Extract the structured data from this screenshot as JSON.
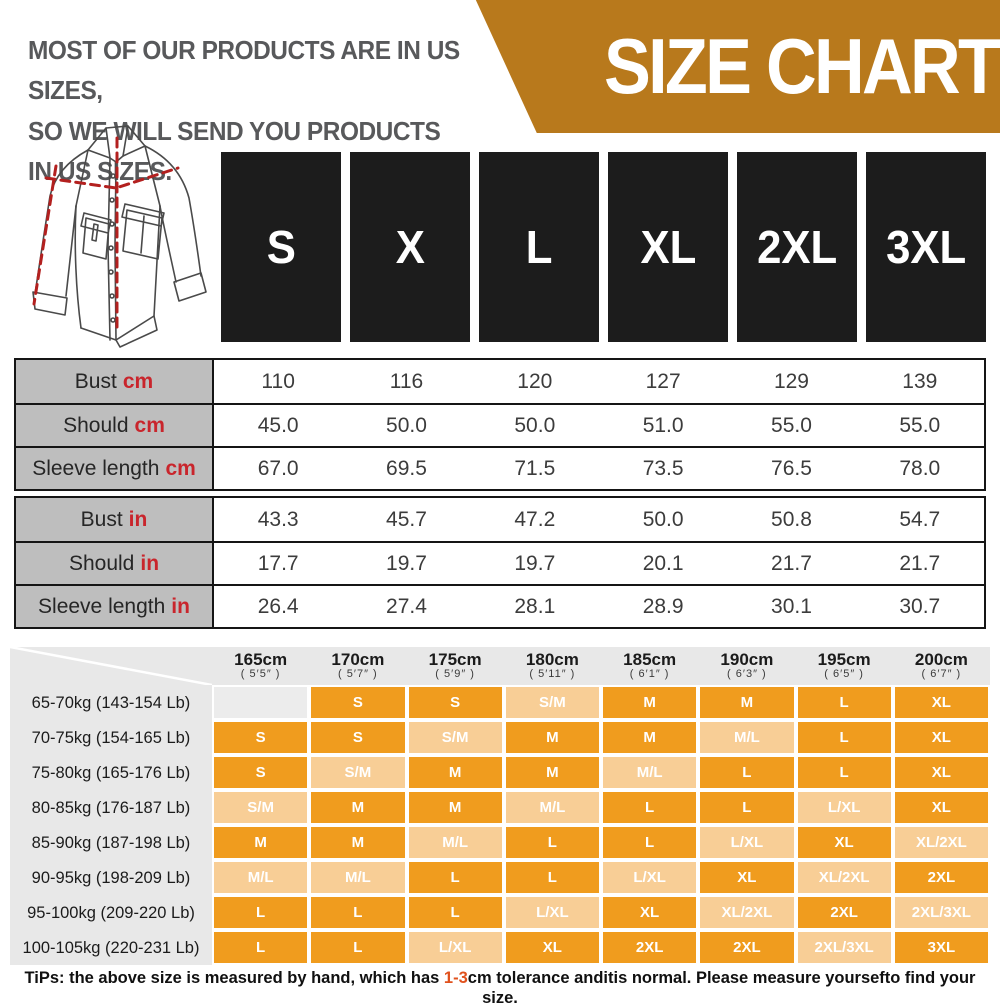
{
  "header": {
    "note_line1": "MOST OF OUR PRODUCTS ARE IN US SIZES,",
    "note_line2": "SO WE WILL SEND YOU PRODUCTS IN US SIZES.",
    "title": "SIZE CHART"
  },
  "size_labels": [
    "S",
    "X",
    "L",
    "XL",
    "2XL",
    "3XL"
  ],
  "measure_tables": [
    {
      "unit": "cm",
      "rows": [
        {
          "label": "Bust",
          "unit": "cm",
          "values": [
            "110",
            "116",
            "120",
            "127",
            "129",
            "139"
          ]
        },
        {
          "label": "Should",
          "unit": "cm",
          "values": [
            "45.0",
            "50.0",
            "50.0",
            "51.0",
            "55.0",
            "55.0"
          ]
        },
        {
          "label": "Sleeve length",
          "unit": "cm",
          "values": [
            "67.0",
            "69.5",
            "71.5",
            "73.5",
            "76.5",
            "78.0"
          ]
        }
      ]
    },
    {
      "unit": "in",
      "rows": [
        {
          "label": "Bust",
          "unit": "in",
          "values": [
            "43.3",
            "45.7",
            "47.2",
            "50.0",
            "50.8",
            "54.7"
          ]
        },
        {
          "label": "Should",
          "unit": "in",
          "values": [
            "17.7",
            "19.7",
            "19.7",
            "20.1",
            "21.7",
            "21.7"
          ]
        },
        {
          "label": "Sleeve length",
          "unit": "in",
          "values": [
            "26.4",
            "27.4",
            "28.1",
            "28.9",
            "30.1",
            "30.7"
          ]
        }
      ]
    }
  ],
  "fit_matrix": {
    "height_headers": [
      {
        "cm": "165cm",
        "ft": "( 5′5″ )"
      },
      {
        "cm": "170cm",
        "ft": "( 5′7″ )"
      },
      {
        "cm": "175cm",
        "ft": "( 5′9″ )"
      },
      {
        "cm": "180cm",
        "ft": "( 5′11″ )"
      },
      {
        "cm": "185cm",
        "ft": "( 6′1″ )"
      },
      {
        "cm": "190cm",
        "ft": "( 6′3″ )"
      },
      {
        "cm": "195cm",
        "ft": "( 6′5″ )"
      },
      {
        "cm": "200cm",
        "ft": "( 6′7″ )"
      }
    ],
    "rows": [
      {
        "weight": "65-70kg (143-154 Lb)",
        "cells": [
          "",
          "S",
          "S",
          "S/M",
          "M",
          "M",
          "L",
          "XL"
        ]
      },
      {
        "weight": "70-75kg (154-165 Lb)",
        "cells": [
          "S",
          "S",
          "S/M",
          "M",
          "M",
          "M/L",
          "L",
          "XL"
        ]
      },
      {
        "weight": "75-80kg (165-176 Lb)",
        "cells": [
          "S",
          "S/M",
          "M",
          "M",
          "M/L",
          "L",
          "L",
          "XL"
        ]
      },
      {
        "weight": "80-85kg (176-187 Lb)",
        "cells": [
          "S/M",
          "M",
          "M",
          "M/L",
          "L",
          "L",
          "L/XL",
          "XL"
        ]
      },
      {
        "weight": "85-90kg (187-198 Lb)",
        "cells": [
          "M",
          "M",
          "M/L",
          "L",
          "L",
          "L/XL",
          "XL",
          "XL/2XL"
        ]
      },
      {
        "weight": "90-95kg (198-209 Lb)",
        "cells": [
          "M/L",
          "M/L",
          "L",
          "L",
          "L/XL",
          "XL",
          "XL/2XL",
          "2XL"
        ]
      },
      {
        "weight": "95-100kg (209-220 Lb)",
        "cells": [
          "L",
          "L",
          "L",
          "L/XL",
          "XL",
          "XL/2XL",
          "2XL",
          "2XL/3XL"
        ]
      },
      {
        "weight": "100-105kg (220-231 Lb)",
        "cells": [
          "L",
          "L",
          "L/XL",
          "XL",
          "2XL",
          "2XL",
          "2XL/3XL",
          "3XL"
        ]
      }
    ]
  },
  "tips": {
    "lead": "TiPs: the above size is measured by hand, which has ",
    "highlight": "1-3",
    "rest": "cm tolerance anditis normal. Please measure yoursefto find your size."
  },
  "colors": {
    "banner": "#B8791C",
    "cell_solid": "#F09C1E",
    "cell_light": "#F8CE96",
    "panel": "#E8E8E8",
    "label_gray": "#BEBEBE",
    "accent_red": "#C9252C",
    "tips_highlight": "#E0511D"
  }
}
